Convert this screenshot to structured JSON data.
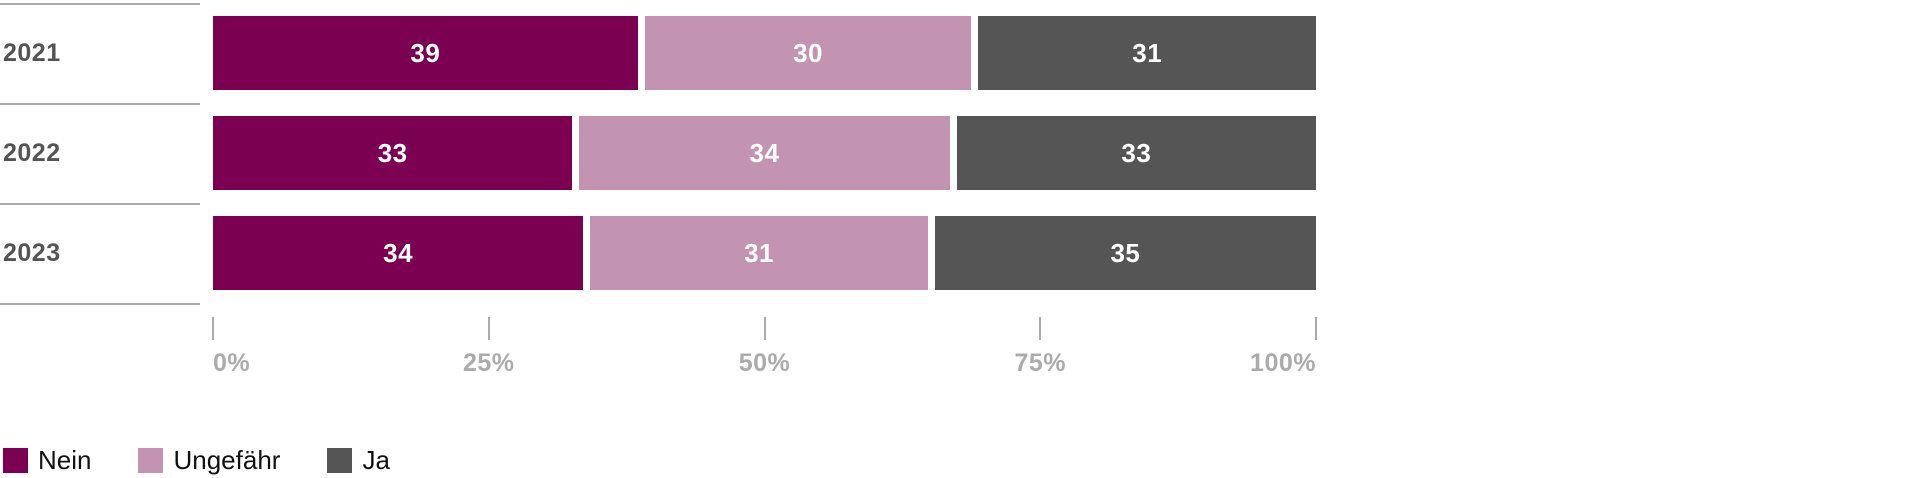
{
  "chart_data": {
    "type": "bar",
    "variant": "horizontal-stacked",
    "title": "",
    "categories": [
      "2021",
      "2022",
      "2023"
    ],
    "series": [
      {
        "name": "Nein",
        "color": "#7b0051",
        "values": [
          39,
          33,
          34
        ]
      },
      {
        "name": "Ungefähr",
        "color": "#c294b2",
        "values": [
          30,
          34,
          31
        ]
      },
      {
        "name": "Ja",
        "color": "#555555",
        "values": [
          31,
          33,
          35
        ]
      }
    ],
    "xlim": [
      0,
      100
    ],
    "x_ticks": [
      "0%",
      "25%",
      "50%",
      "75%",
      "100%"
    ],
    "value_labels": true,
    "value_label_color": "#ffffff",
    "grid": false,
    "legend_position": "bottom-left",
    "category_label_color": "#545454",
    "tick_label_color": "#ababab",
    "separator_line_color": "#a9a9a9"
  }
}
